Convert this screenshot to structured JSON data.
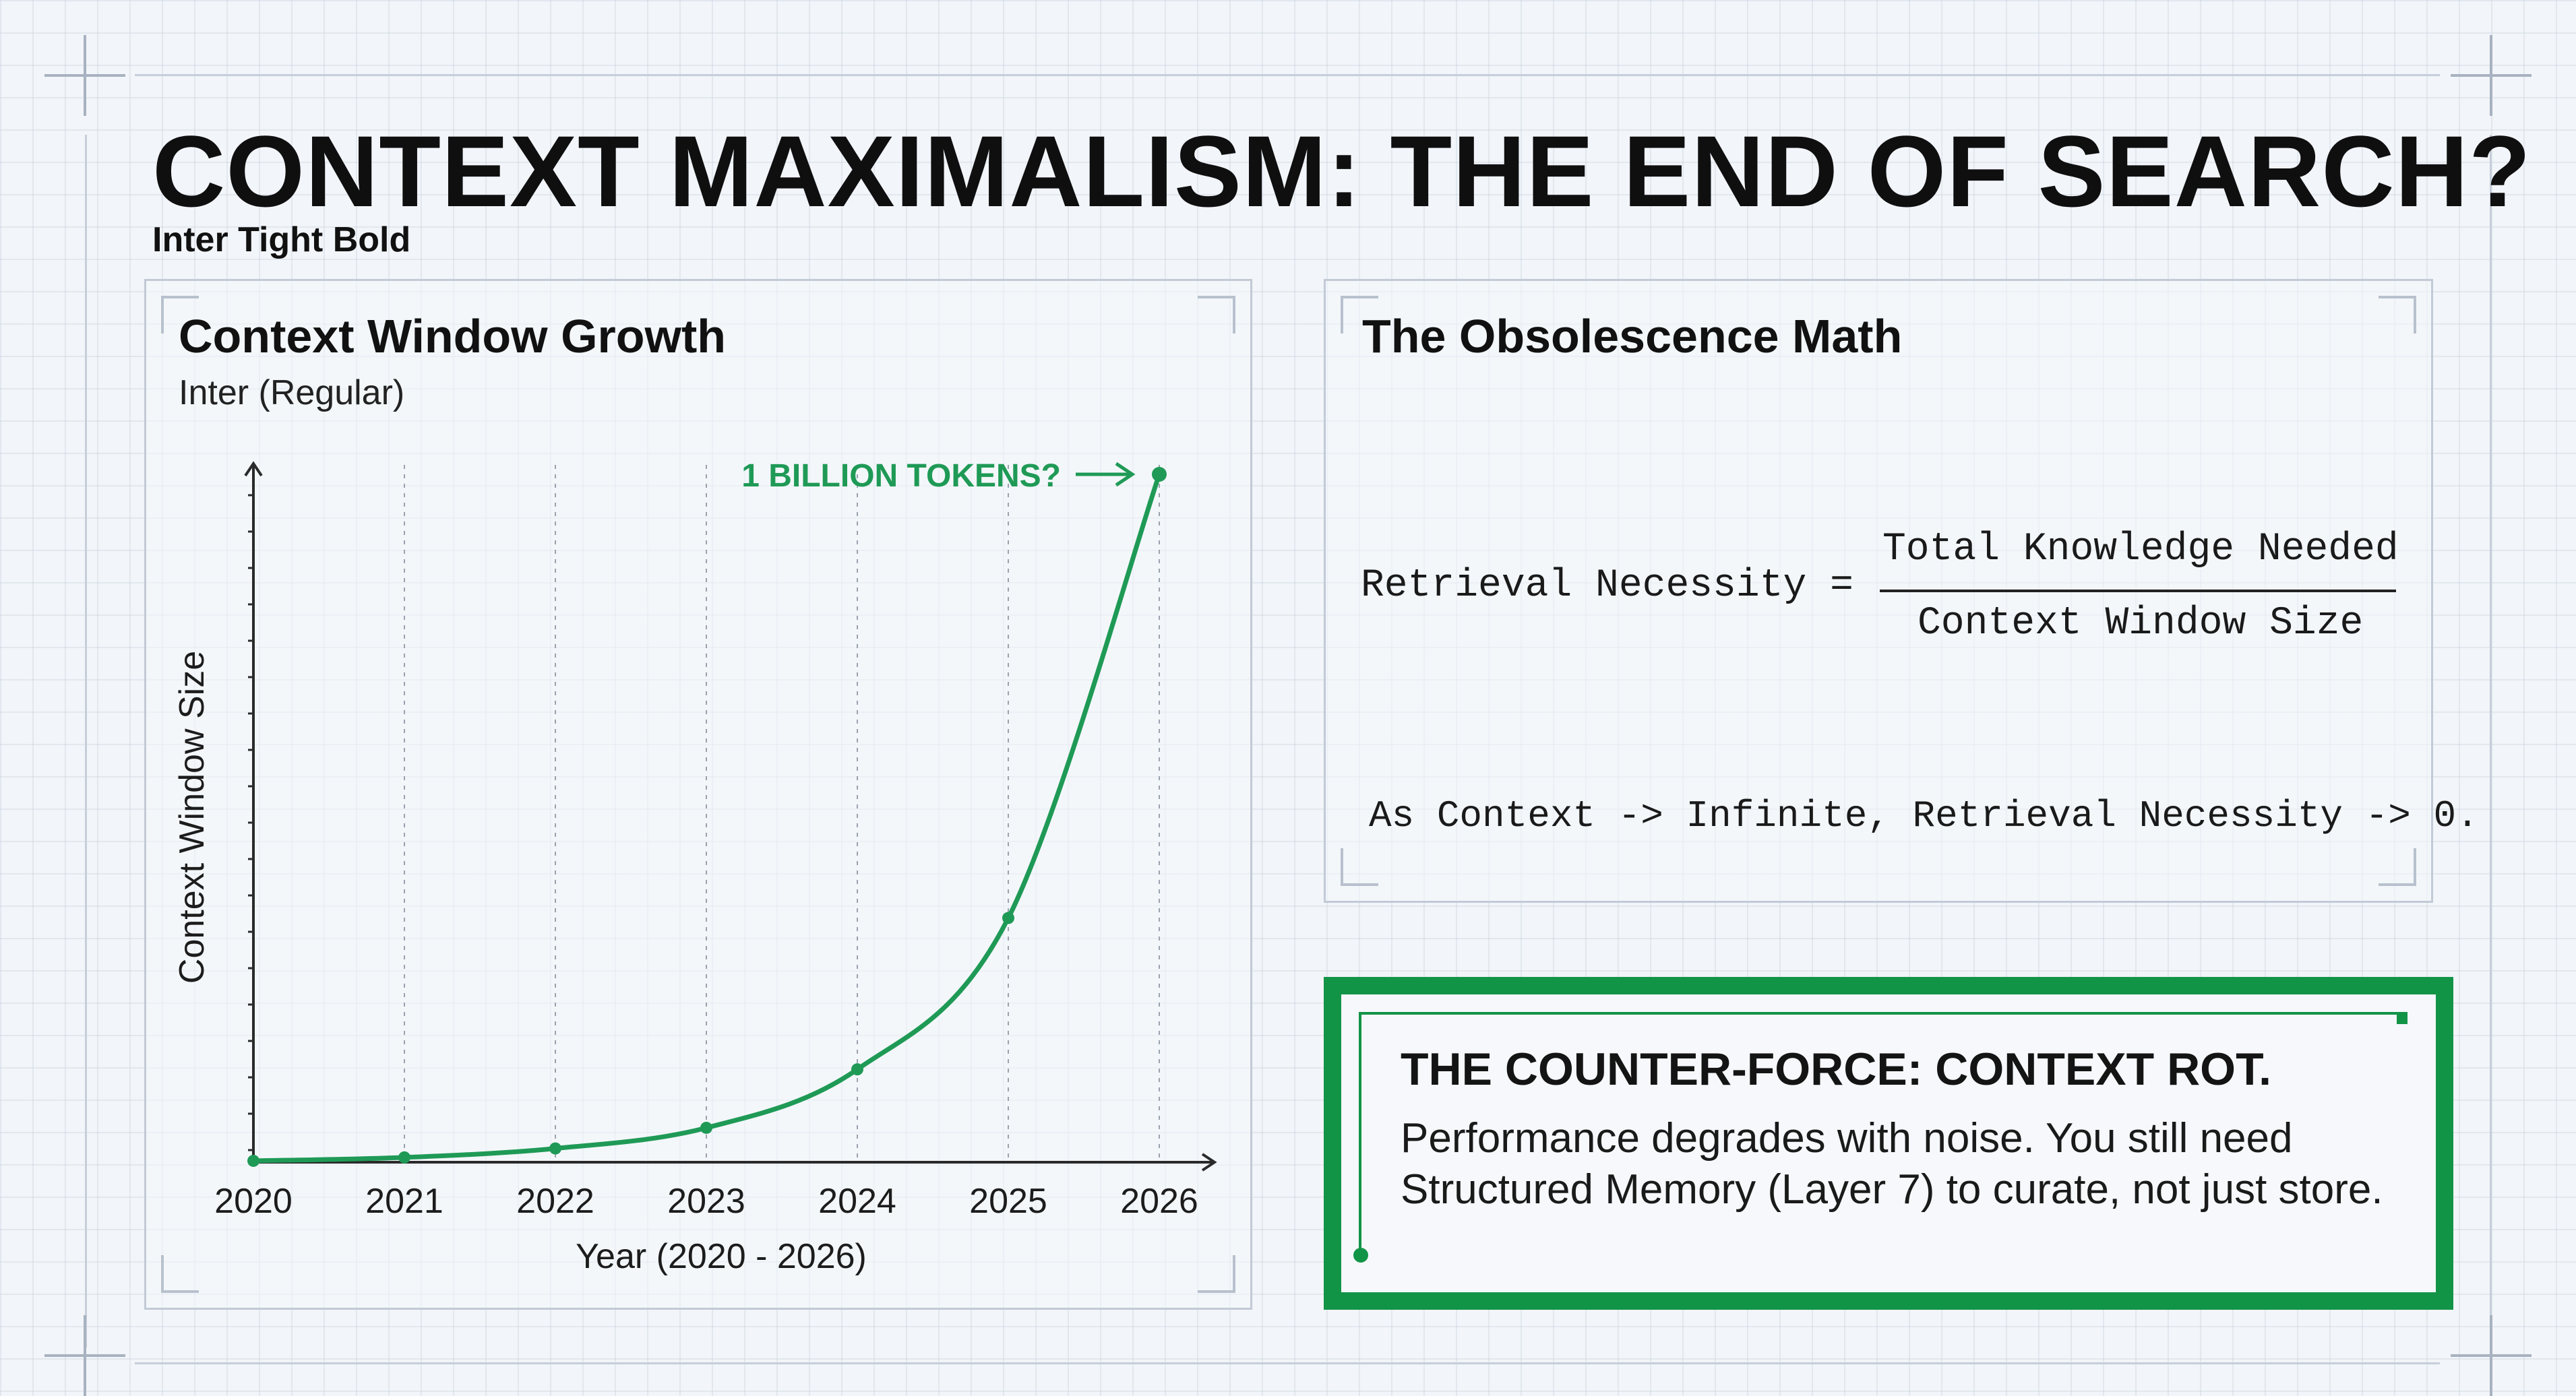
{
  "title": "CONTEXT MAXIMALISM: THE END OF SEARCH?",
  "title_font_note": "Inter Tight Bold",
  "left_panel": {
    "title": "Context Window Growth",
    "subtitle": "Inter (Regular)",
    "annotation": "1 BILLION TOKENS?"
  },
  "right_panel": {
    "title": "The Obsolescence Math",
    "formula_lhs": "Retrieval Necessity =",
    "numerator": "Total Knowledge Needed",
    "denominator": "Context Window Size",
    "conclusion": "As Context -> Infinite, Retrieval Necessity -> 0."
  },
  "counter_force": {
    "title": "THE COUNTER-FORCE: CONTEXT ROT.",
    "body": "Performance degrades with noise. You still need Structured Memory (Layer 7) to curate, not just store."
  },
  "colors": {
    "accent_green": "#129447",
    "curve_green": "#1f9a56",
    "background": "#f2f5f9"
  },
  "chart_data": {
    "type": "line",
    "title": "Context Window Growth",
    "xlabel": "Year (2020 - 2026)",
    "ylabel": "Context Window Size",
    "x": [
      "2020",
      "2021",
      "2022",
      "2023",
      "2024",
      "2025",
      "2026"
    ],
    "series": [
      {
        "values": [
          0.2,
          0.7,
          2.0,
          5.0,
          13.5,
          35.5,
          100
        ]
      }
    ],
    "ylim": [
      0,
      100
    ],
    "grid": true,
    "annotations": [
      {
        "text": "1 BILLION TOKENS?",
        "x": "2026",
        "y": 100
      }
    ]
  }
}
